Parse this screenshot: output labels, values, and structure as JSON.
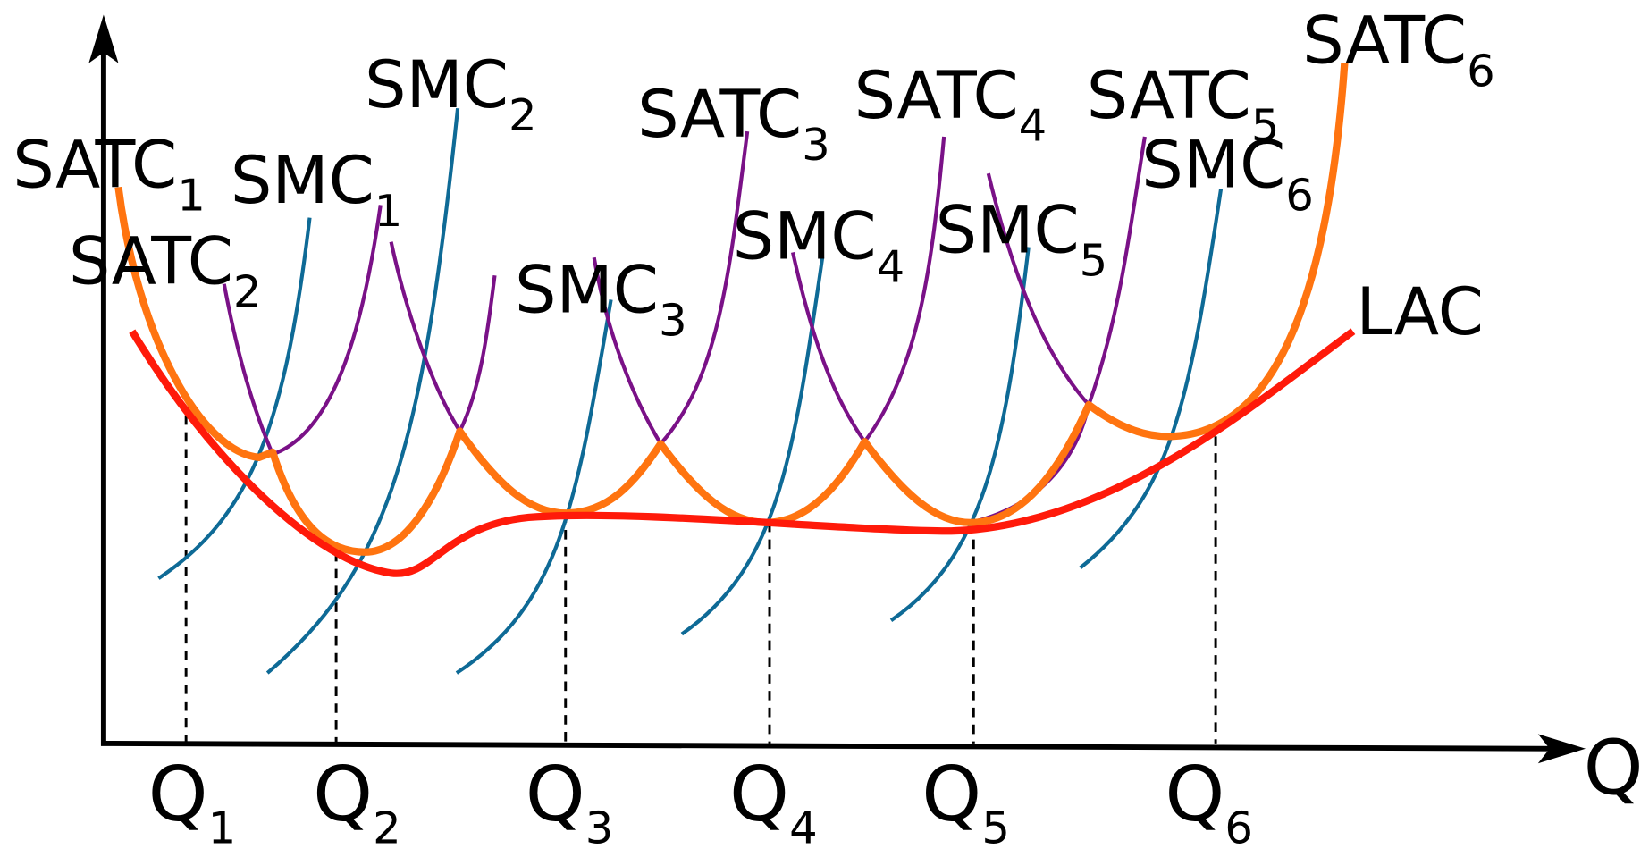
{
  "curves": [
    {
      "label": "SATC",
      "sub": "1"
    },
    {
      "label": "SMC",
      "sub": "1"
    },
    {
      "label": "SATC",
      "sub": "2"
    },
    {
      "label": "SMC",
      "sub": "2"
    },
    {
      "label": "SATC",
      "sub": "3"
    },
    {
      "label": "SATC",
      "sub": "4"
    },
    {
      "label": "SATC",
      "sub": "5"
    },
    {
      "label": "SATC",
      "sub": "6"
    },
    {
      "label": "SMC",
      "sub": "3"
    },
    {
      "label": "SMC",
      "sub": "4"
    },
    {
      "label": "SMC",
      "sub": "5"
    },
    {
      "label": "SMC",
      "sub": "6"
    }
  ],
  "lac_label": "LAC",
  "x_axis_label": "Q",
  "quantities": [
    {
      "label": "Q",
      "sub": "1"
    },
    {
      "label": "Q",
      "sub": "2"
    },
    {
      "label": "Q",
      "sub": "3"
    },
    {
      "label": "Q",
      "sub": "4"
    },
    {
      "label": "Q",
      "sub": "5"
    },
    {
      "label": "Q",
      "sub": "6"
    }
  ]
}
